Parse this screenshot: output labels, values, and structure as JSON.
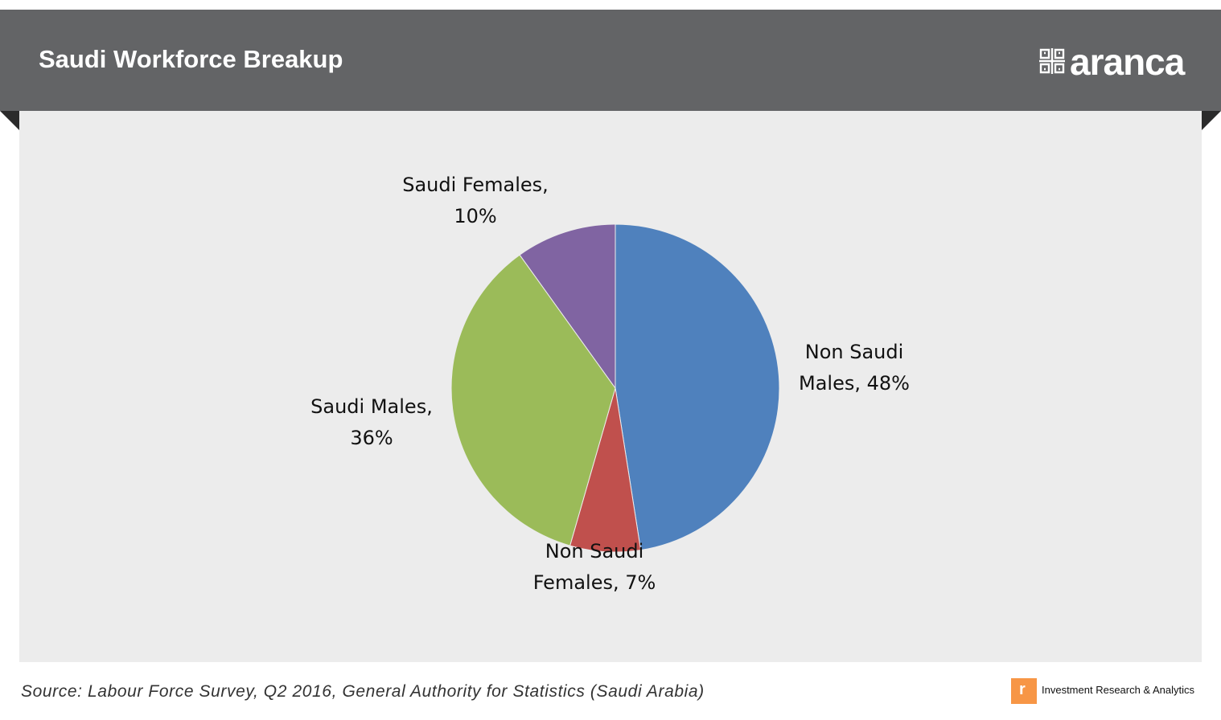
{
  "header": {
    "title": "Saudi Workforce Breakup",
    "brand": "aranca",
    "banner_color": "#636466"
  },
  "chart_data": {
    "type": "pie",
    "title": "Saudi Workforce Breakup",
    "slices": [
      {
        "label": "Non Saudi Males, 48%",
        "name": "Non Saudi Males",
        "value": 48,
        "color": "#4f81bd"
      },
      {
        "label": "Non Saudi Females, 7%",
        "name": "Non Saudi Females",
        "value": 7,
        "color": "#c0504d"
      },
      {
        "label": "Saudi Males, 36%",
        "name": "Saudi Males",
        "value": 36,
        "color": "#9bbb59"
      },
      {
        "label": "Saudi Females, 10%",
        "name": "Saudi Females",
        "value": 10,
        "color": "#8064a2"
      }
    ],
    "start_angle": "12 o'clock",
    "direction": "clockwise",
    "legend": "none",
    "data_labels": "outside"
  },
  "footer": {
    "source": "Source: Labour Force Survey, Q2 2016, General Authority for Statistics (Saudi Arabia)",
    "tagline": "Investment  Research & Analytics",
    "badge_color": "#f79646"
  }
}
